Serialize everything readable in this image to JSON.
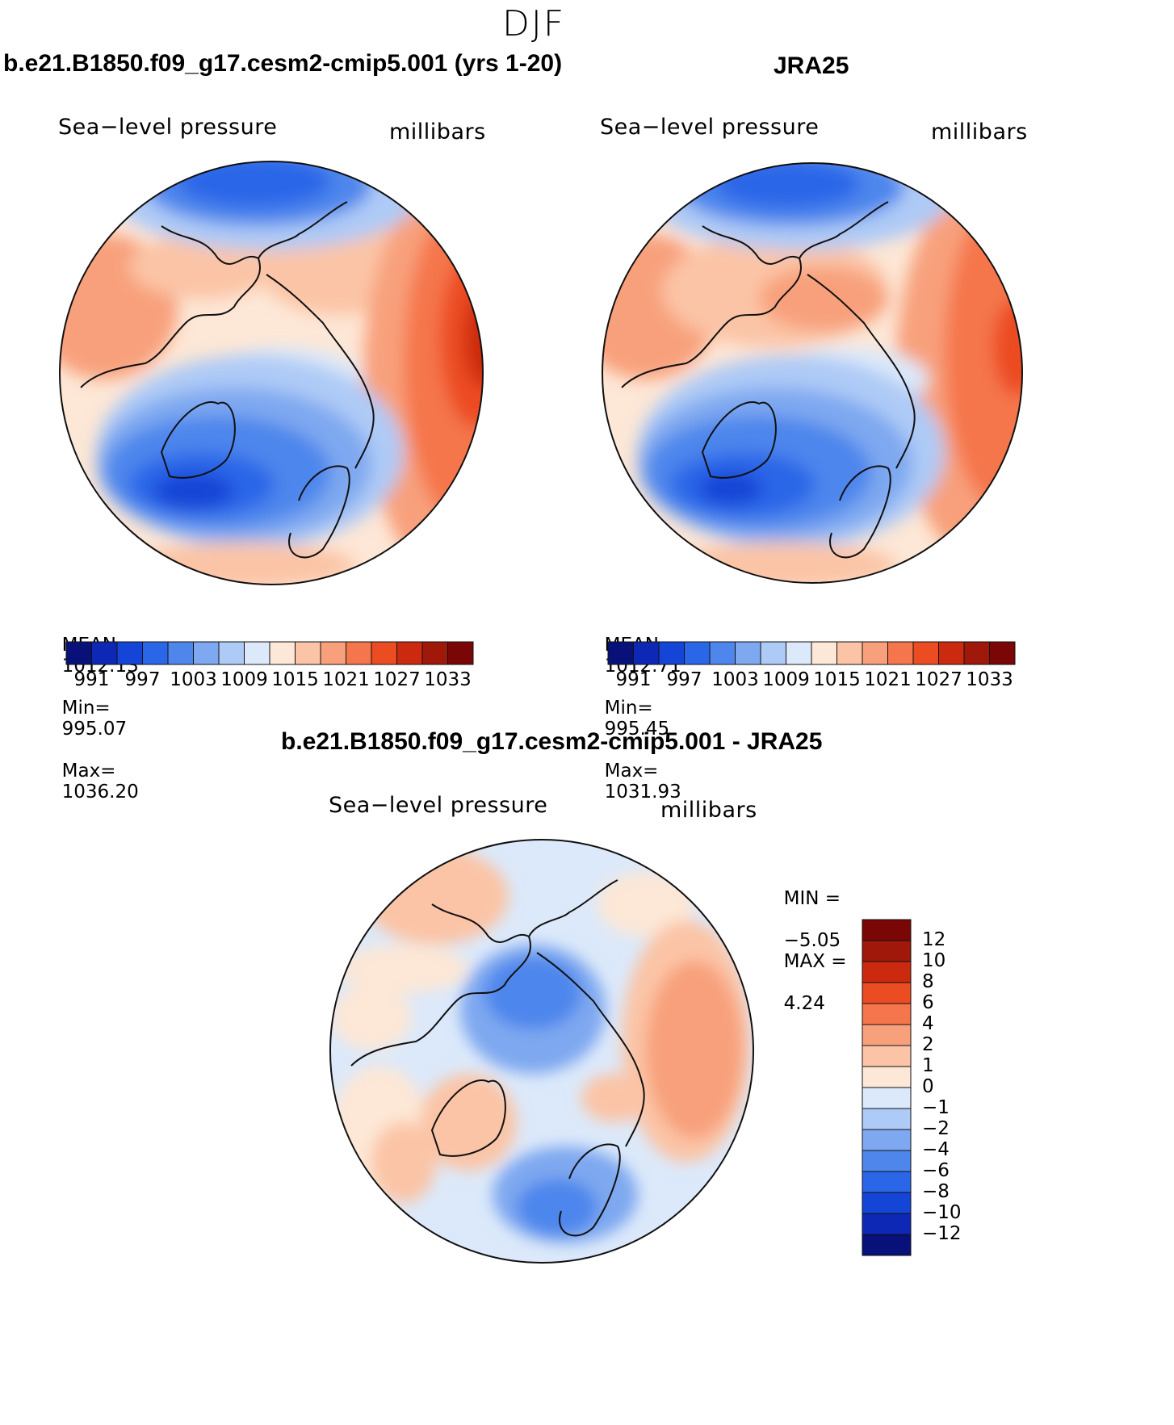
{
  "season_title": "DJF",
  "colors": {
    "scale": [
      "#08107a",
      "#0d28b4",
      "#1545d6",
      "#2a66e8",
      "#4e86ec",
      "#7ea8f0",
      "#aecaf6",
      "#dce9fa",
      "#fde7d6",
      "#fbc4a6",
      "#f8a07c",
      "#f5764c",
      "#ec4c22",
      "#cc2a0e",
      "#a0180a",
      "#7a0606"
    ],
    "coast": "#111111"
  },
  "panels": {
    "model": {
      "title": "b.e21.B1850.f09_g17.cesm2-cmip5.001 (yrs 1-20)",
      "variable": "Sea−level pressure",
      "units": "millibars",
      "stats": {
        "mean_label": "MEAN=",
        "mean": "1012.13",
        "min_label": "Min=",
        "min": "995.07",
        "max_label": "Max=",
        "max": "1036.20"
      },
      "colorbar_labels": [
        "991",
        "997",
        "1003",
        "1009",
        "1015",
        "1021",
        "1027",
        "1033"
      ]
    },
    "obs": {
      "title": "JRA25",
      "variable": "Sea−level pressure",
      "units": "millibars",
      "stats": {
        "mean_label": "MEAN=",
        "mean": "1012.71",
        "min_label": "Min=",
        "min": "995.45",
        "max_label": "Max=",
        "max": "1031.93"
      },
      "colorbar_labels": [
        "991",
        "997",
        "1003",
        "1009",
        "1015",
        "1021",
        "1027",
        "1033"
      ]
    },
    "diff": {
      "title": "b.e21.B1850.f09_g17.cesm2-cmip5.001 - JRA25",
      "variable": "Sea−level pressure",
      "units": "millibars",
      "stats": {
        "min_label": "MIN =",
        "min": "−5.05",
        "max_label": "MAX =",
        "max": "4.24"
      },
      "colorbar_labels": [
        "12",
        "10",
        "8",
        "6",
        "4",
        "2",
        "1",
        "0",
        "−1",
        "−2",
        "−4",
        "−6",
        "−8",
        "−10",
        "−12"
      ]
    }
  }
}
